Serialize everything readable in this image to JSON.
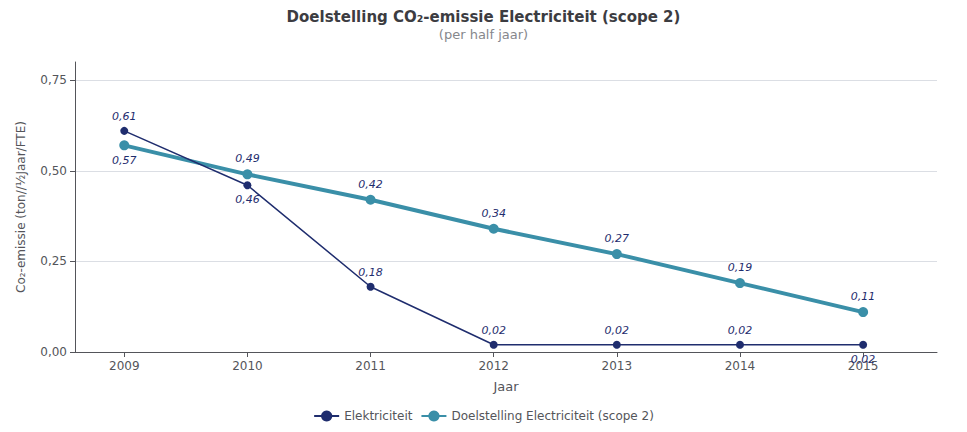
{
  "chart_data": {
    "type": "line",
    "title": "Doelstelling CO₂-emissie Electriciteit (scope 2)",
    "subtitle": "(per half jaar)",
    "x_label": "Jaar",
    "y_label": "Co₂-emissie (ton//½Jaar/FTE)",
    "x": [
      2009,
      2010,
      2011,
      2012,
      2013,
      2014,
      2015
    ],
    "xlim": [
      2008.6,
      2015.6
    ],
    "xticks": [
      2009,
      2010,
      2011,
      2012,
      2013,
      2014,
      2015
    ],
    "ylim": [
      0.0,
      0.8
    ],
    "yticks": [
      {
        "value": 0.0,
        "label": "0,00"
      },
      {
        "value": 0.25,
        "label": "0,25"
      },
      {
        "value": 0.5,
        "label": "0,50"
      },
      {
        "value": 0.75,
        "label": "0,75"
      }
    ],
    "grid": true,
    "legend": "bottom",
    "data_labels": true,
    "series": [
      {
        "name": "Elektriciteit",
        "color": "#1f2d6e",
        "values": [
          0.61,
          0.46,
          0.18,
          0.02,
          0.02,
          0.02,
          0.02
        ],
        "value_labels": [
          "0,61",
          "0,46",
          "0,18",
          "0,02",
          "0,02",
          "0,02",
          "0,02"
        ]
      },
      {
        "name": "Doelstelling Electriciteit (scope 2)",
        "color": "#3a8fa8",
        "values": [
          0.57,
          0.49,
          0.42,
          0.34,
          0.27,
          0.19,
          0.11
        ],
        "value_labels": [
          "0,57",
          "0,49",
          "0,42",
          "0,34",
          "0,27",
          "0,19",
          "0,11"
        ]
      }
    ]
  }
}
